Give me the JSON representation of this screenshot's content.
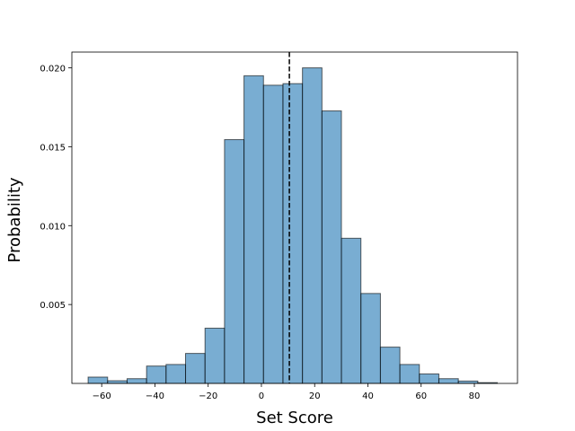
{
  "chart_data": {
    "type": "histogram",
    "xlabel": "Set Score",
    "ylabel": "Probability",
    "color": "#1f77b4",
    "bins": [
      -65.1,
      -57.78,
      -50.46,
      -43.14,
      -35.82,
      -28.5,
      -21.18,
      -13.86,
      -6.54,
      0.78,
      8.1,
      15.42,
      22.74,
      30.06,
      37.38,
      44.7,
      52.02,
      59.34,
      66.66,
      73.98,
      81.3,
      88.62
    ],
    "values": [
      0.0004,
      0.00017,
      0.0003,
      0.0011,
      0.0012,
      0.0019,
      0.0035,
      0.01545,
      0.0195,
      0.0189,
      0.019,
      0.02,
      0.01727,
      0.0092,
      0.0057,
      0.0023,
      0.0012,
      0.0006,
      0.0003,
      0.00015,
      5e-05
    ],
    "vline": 10.5,
    "xlim": [
      -71.2,
      96.2
    ],
    "xticks": [
      {
        "value": -60,
        "label": "−60"
      },
      {
        "value": -40,
        "label": "−40"
      },
      {
        "value": -20,
        "label": "−20"
      },
      0,
      20,
      40,
      60,
      80
    ],
    "ylim": [
      0,
      0.021
    ],
    "yticks": [
      0.005,
      {
        "value": 0.01,
        "label": "0.010"
      },
      0.015,
      {
        "value": 0.02,
        "label": "0.020"
      }
    ]
  }
}
